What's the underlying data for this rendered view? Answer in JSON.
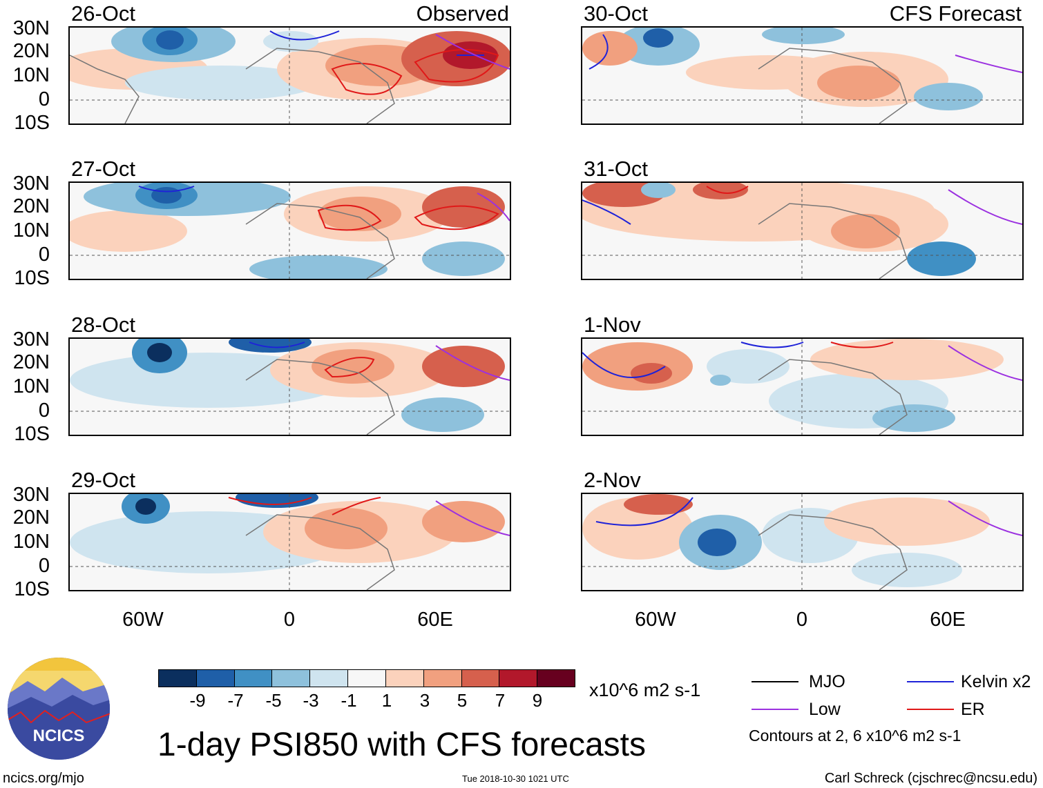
{
  "title": "1-day PSI850 with CFS forecasts",
  "units": "x10^6 m2 s-1",
  "left_column_label": "Observed",
  "right_column_label": "CFS Forecast",
  "panels": {
    "left": [
      "26-Oct",
      "27-Oct",
      "28-Oct",
      "29-Oct"
    ],
    "right": [
      "30-Oct",
      "31-Oct",
      "1-Nov",
      "2-Nov"
    ]
  },
  "lat_labels": [
    "30N",
    "20N",
    "10N",
    "0",
    "10S"
  ],
  "lon_labels": [
    "60W",
    "0",
    "60E"
  ],
  "colorbar": {
    "ticks": [
      "-9",
      "-7",
      "-5",
      "-3",
      "-1",
      "1",
      "3",
      "5",
      "7",
      "9"
    ],
    "colors": [
      "#0b2f5e",
      "#1f5fa8",
      "#4090c4",
      "#8ec1dc",
      "#cfe4ef",
      "#f7f7f7",
      "#fbd2bc",
      "#f1a07f",
      "#d6604d",
      "#b2182b",
      "#67001f"
    ]
  },
  "legend": {
    "items": [
      {
        "label": "MJO",
        "color": "#000000"
      },
      {
        "label": "Kelvin x2",
        "color": "#1e22d8"
      },
      {
        "label": "Low",
        "color": "#9b30e0"
      },
      {
        "label": "ER",
        "color": "#e01818"
      }
    ],
    "note": "Contours at 2, 6 x10^6 m2 s-1"
  },
  "logo_text": "NCICS",
  "footer": {
    "url": "ncics.org/mjo",
    "timestamp": "Tue 2018-10-30 1021 UTC",
    "author": "Carl Schreck (cjschrec@ncsu.edu)"
  }
}
